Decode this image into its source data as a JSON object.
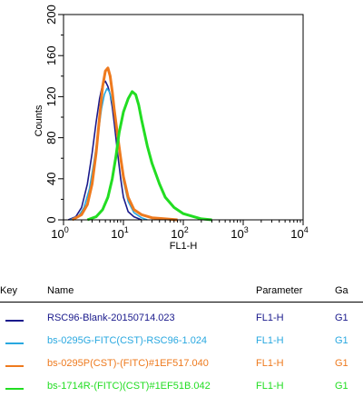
{
  "chart_data": {
    "type": "line",
    "xlabel": "FL1-H",
    "ylabel": "Counts",
    "xscale": "log",
    "xlim": [
      1,
      10000
    ],
    "ylim": [
      0,
      200
    ],
    "x_ticks": [
      {
        "base": "10",
        "exp": "0"
      },
      {
        "base": "10",
        "exp": "1"
      },
      {
        "base": "10",
        "exp": "2"
      },
      {
        "base": "10",
        "exp": "3"
      },
      {
        "base": "10",
        "exp": "4"
      }
    ],
    "y_ticks": [
      "0",
      "40",
      "80",
      "120",
      "160",
      "200"
    ],
    "grid": false,
    "series": [
      {
        "name": "RSC96-Blank-20150714.023",
        "color": "#1a1a8c",
        "x": [
          1.2,
          1.6,
          2.0,
          2.5,
          3.0,
          3.5,
          4.0,
          4.5,
          5.0,
          5.5,
          6.0,
          6.5,
          7.0,
          8.0,
          9.0,
          10,
          12,
          15,
          20
        ],
        "y": [
          0,
          3,
          12,
          35,
          65,
          95,
          118,
          132,
          135,
          130,
          122,
          110,
          95,
          65,
          40,
          22,
          8,
          3,
          0
        ]
      },
      {
        "name": "bs-0295G-FITC(CST)-RSC96-1.024",
        "color": "#29a8e0",
        "x": [
          1.3,
          1.8,
          2.2,
          2.7,
          3.2,
          3.8,
          4.3,
          4.8,
          5.3,
          5.8,
          6.5,
          7.2,
          8.0,
          9.0,
          10,
          12,
          15,
          20,
          25
        ],
        "y": [
          0,
          4,
          12,
          30,
          55,
          85,
          108,
          122,
          128,
          125,
          115,
          100,
          80,
          58,
          38,
          18,
          7,
          2,
          0
        ]
      },
      {
        "name": "bs-0295P(CST)-(FITC)#1EF517.040",
        "color": "#ee7a1e",
        "x": [
          1.4,
          2.0,
          2.5,
          3.0,
          3.5,
          4.0,
          4.5,
          5.0,
          5.5,
          6.0,
          6.5,
          7.0,
          8.0,
          9.0,
          10,
          12,
          15,
          20,
          30,
          50,
          80
        ],
        "y": [
          0,
          5,
          15,
          35,
          65,
          100,
          130,
          145,
          148,
          140,
          125,
          108,
          82,
          60,
          42,
          22,
          10,
          5,
          2,
          1,
          0
        ]
      },
      {
        "name": "bs-1714R-(FITC)(CST)#1EF51B.042",
        "color": "#22dd22",
        "x": [
          2.5,
          3.5,
          4.5,
          5.5,
          6.5,
          7.5,
          8.5,
          10,
          12,
          14,
          16,
          18,
          20,
          25,
          30,
          40,
          50,
          70,
          100,
          150,
          200,
          300
        ],
        "y": [
          0,
          3,
          10,
          22,
          40,
          62,
          85,
          105,
          118,
          125,
          122,
          112,
          98,
          72,
          55,
          35,
          22,
          12,
          6,
          3,
          1,
          0
        ]
      }
    ]
  },
  "legend": {
    "headers": {
      "key": "Key",
      "name": "Name",
      "parameter": "Parameter",
      "gate": "Ga"
    },
    "rows": [
      {
        "name": "RSC96-Blank-20150714.023",
        "parameter": "FL1-H",
        "gate": "G1",
        "color": "#1a1a8c"
      },
      {
        "name": "bs-0295G-FITC(CST)-RSC96-1.024",
        "parameter": "FL1-H",
        "gate": "G1",
        "color": "#29a8e0"
      },
      {
        "name": "bs-0295P(CST)-(FITC)#1EF517.040",
        "parameter": "FL1-H",
        "gate": "G1",
        "color": "#ee7a1e"
      },
      {
        "name": "bs-1714R-(FITC)(CST)#1EF51B.042",
        "parameter": "FL1-H",
        "gate": "G1",
        "color": "#22dd22"
      }
    ]
  }
}
